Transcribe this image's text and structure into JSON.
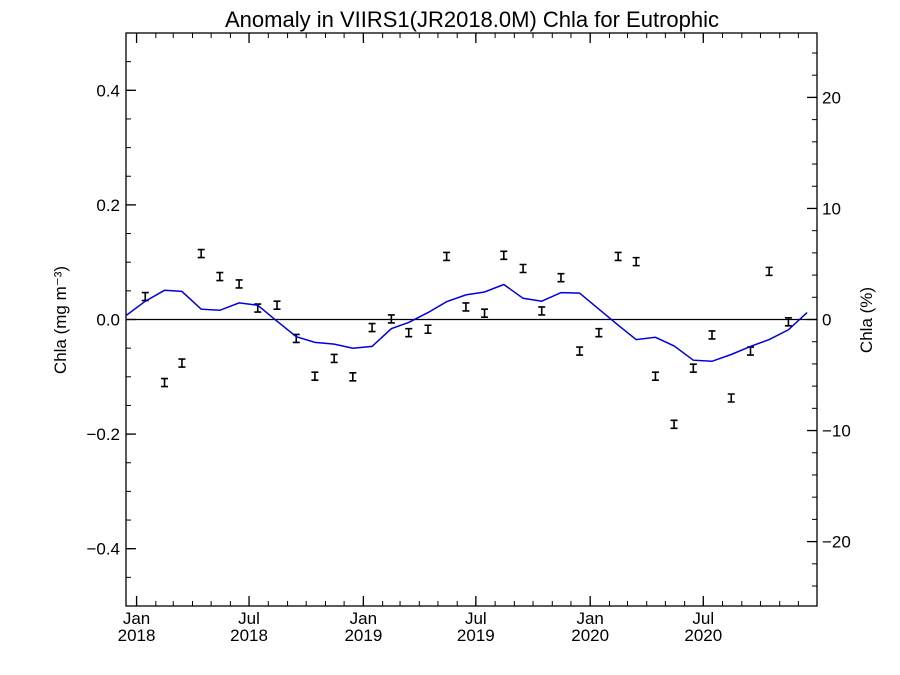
{
  "chart_data": {
    "type": "line",
    "title": "Anomaly in VIIRS1(JR2018.0M) Chla for Eutrophic",
    "ylabel_left": "Chla (mg m⁻³)",
    "ylabel_right": "Chla (%)",
    "ylim_left": [
      -0.5,
      0.5
    ],
    "ylim_right": [
      -25.8,
      25.8
    ],
    "yticks_left": [
      {
        "value": 0.4,
        "label": "0.4"
      },
      {
        "value": 0.2,
        "label": "0.2"
      },
      {
        "value": 0.0,
        "label": "0.0"
      },
      {
        "value": -0.2,
        "label": "−0.2"
      },
      {
        "value": -0.4,
        "label": "−0.4"
      }
    ],
    "yticks_right": [
      {
        "value": 20,
        "label": "20"
      },
      {
        "value": 10,
        "label": "10"
      },
      {
        "value": 0,
        "label": "0"
      },
      {
        "value": -10,
        "label": "−10"
      },
      {
        "value": -20,
        "label": "−20"
      }
    ],
    "xlim": [
      "2017-12-15",
      "2020-12-31"
    ],
    "xticks": [
      {
        "date": "2018-01-01",
        "month": "Jan",
        "year": "2018"
      },
      {
        "date": "2018-07-01",
        "month": "Jul",
        "year": "2018"
      },
      {
        "date": "2019-01-01",
        "month": "Jan",
        "year": "2019"
      },
      {
        "date": "2019-07-01",
        "month": "Jul",
        "year": "2019"
      },
      {
        "date": "2020-01-01",
        "month": "Jan",
        "year": "2020"
      },
      {
        "date": "2020-07-01",
        "month": "Jul",
        "year": "2020"
      }
    ],
    "zero_line": true,
    "series": [
      {
        "style": "error-bars",
        "color": "#000000",
        "points": [
          {
            "x": "2018-01-15",
            "y": 0.04
          },
          {
            "x": "2018-02-15",
            "y": -0.11
          },
          {
            "x": "2018-03-15",
            "y": -0.076
          },
          {
            "x": "2018-04-15",
            "y": 0.115
          },
          {
            "x": "2018-05-15",
            "y": 0.075
          },
          {
            "x": "2018-06-15",
            "y": 0.062
          },
          {
            "x": "2018-07-15",
            "y": 0.02
          },
          {
            "x": "2018-08-15",
            "y": 0.025
          },
          {
            "x": "2018-09-15",
            "y": -0.033
          },
          {
            "x": "2018-10-15",
            "y": -0.099
          },
          {
            "x": "2018-11-15",
            "y": -0.068
          },
          {
            "x": "2018-12-15",
            "y": -0.1
          },
          {
            "x": "2019-01-15",
            "y": -0.014
          },
          {
            "x": "2019-02-15",
            "y": 0.001
          },
          {
            "x": "2019-03-15",
            "y": -0.023
          },
          {
            "x": "2019-04-15",
            "y": -0.017
          },
          {
            "x": "2019-05-15",
            "y": 0.11
          },
          {
            "x": "2019-06-15",
            "y": 0.022
          },
          {
            "x": "2019-07-15",
            "y": 0.011
          },
          {
            "x": "2019-08-15",
            "y": 0.112
          },
          {
            "x": "2019-09-15",
            "y": 0.089
          },
          {
            "x": "2019-10-15",
            "y": 0.015
          },
          {
            "x": "2019-11-15",
            "y": 0.073
          },
          {
            "x": "2019-12-15",
            "y": -0.055
          },
          {
            "x": "2020-01-15",
            "y": -0.023
          },
          {
            "x": "2020-02-15",
            "y": 0.11
          },
          {
            "x": "2020-03-15",
            "y": 0.101
          },
          {
            "x": "2020-04-15",
            "y": -0.099
          },
          {
            "x": "2020-05-15",
            "y": -0.183
          },
          {
            "x": "2020-06-15",
            "y": -0.085
          },
          {
            "x": "2020-07-15",
            "y": -0.027
          },
          {
            "x": "2020-08-15",
            "y": -0.137
          },
          {
            "x": "2020-09-15",
            "y": -0.055
          },
          {
            "x": "2020-10-15",
            "y": 0.084
          },
          {
            "x": "2020-11-15",
            "y": -0.004
          }
        ]
      },
      {
        "style": "line",
        "color": "#0000dd",
        "points": [
          {
            "x": "2017-12-15",
            "y": 0.007
          },
          {
            "x": "2018-01-15",
            "y": 0.032
          },
          {
            "x": "2018-02-15",
            "y": 0.051
          },
          {
            "x": "2018-03-15",
            "y": 0.049
          },
          {
            "x": "2018-04-15",
            "y": 0.018
          },
          {
            "x": "2018-05-15",
            "y": 0.016
          },
          {
            "x": "2018-06-15",
            "y": 0.029
          },
          {
            "x": "2018-07-15",
            "y": 0.025
          },
          {
            "x": "2018-08-15",
            "y": -0.003
          },
          {
            "x": "2018-09-15",
            "y": -0.03
          },
          {
            "x": "2018-10-15",
            "y": -0.04
          },
          {
            "x": "2018-11-15",
            "y": -0.043
          },
          {
            "x": "2018-12-15",
            "y": -0.05
          },
          {
            "x": "2019-01-15",
            "y": -0.047
          },
          {
            "x": "2019-02-15",
            "y": -0.016
          },
          {
            "x": "2019-03-15",
            "y": -0.005
          },
          {
            "x": "2019-04-15",
            "y": 0.012
          },
          {
            "x": "2019-05-15",
            "y": 0.031
          },
          {
            "x": "2019-06-15",
            "y": 0.043
          },
          {
            "x": "2019-07-15",
            "y": 0.048
          },
          {
            "x": "2019-08-15",
            "y": 0.061
          },
          {
            "x": "2019-09-15",
            "y": 0.037
          },
          {
            "x": "2019-10-15",
            "y": 0.032
          },
          {
            "x": "2019-11-15",
            "y": 0.047
          },
          {
            "x": "2019-12-15",
            "y": 0.046
          },
          {
            "x": "2020-01-15",
            "y": 0.018
          },
          {
            "x": "2020-02-15",
            "y": -0.01
          },
          {
            "x": "2020-03-15",
            "y": -0.035
          },
          {
            "x": "2020-04-15",
            "y": -0.031
          },
          {
            "x": "2020-05-15",
            "y": -0.046
          },
          {
            "x": "2020-06-15",
            "y": -0.071
          },
          {
            "x": "2020-07-15",
            "y": -0.073
          },
          {
            "x": "2020-08-15",
            "y": -0.061
          },
          {
            "x": "2020-09-15",
            "y": -0.047
          },
          {
            "x": "2020-10-15",
            "y": -0.035
          },
          {
            "x": "2020-11-15",
            "y": -0.018
          },
          {
            "x": "2020-12-15",
            "y": 0.012
          }
        ]
      }
    ]
  }
}
